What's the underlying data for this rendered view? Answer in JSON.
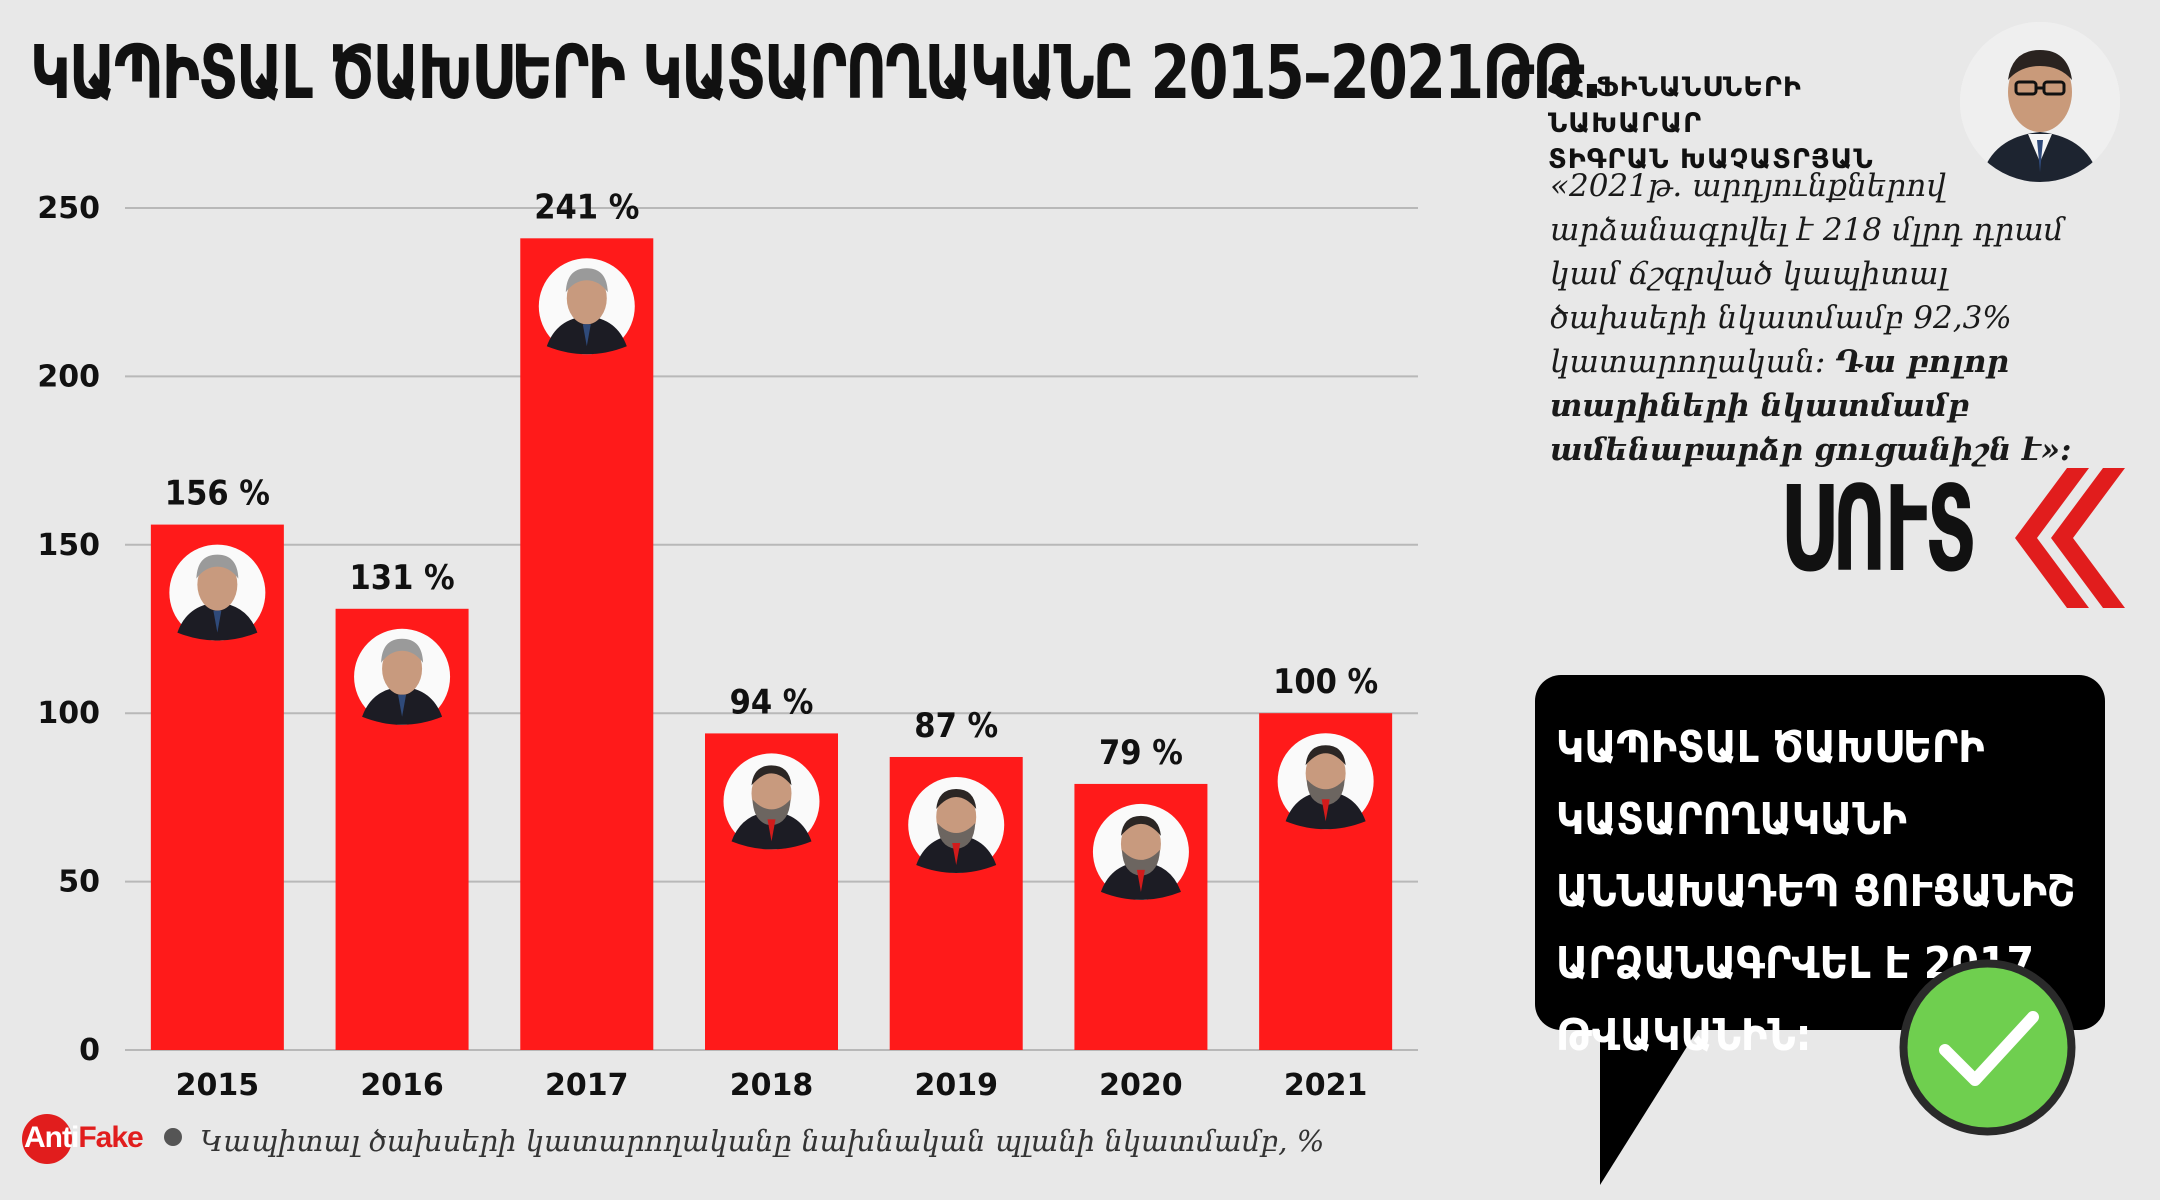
{
  "title": "ԿԱՊԻՏԱԼ ԾԱԽՍԵՐԻ ԿԱՏԱՐՈՂԱԿԱՆԸ 2015–2021ԹԹ․",
  "source_note": "Կապիտալ ծախսերի կատարողականը նախնական պլանի նկատմամբ, %",
  "logo": {
    "anti": "Anti",
    "fake": "Fake"
  },
  "minister": {
    "line1": "ՀՀ ՖԻՆԱՆՍՆԵՐԻ ՆԱԽԱՐԱՐ",
    "line2": "ՏԻԳՐԱՆ ԽԱՉԱՏՐՅԱՆ",
    "quote_plain": "«2021թ. արդյունքներով արձանագրվել է 218 մլրդ դրամ կամ ճշգրված կապիտալ ծախսերի նկատմամբ 92,3% կատարողական:",
    "quote_bold": "Դա բոլոր տարիների նկատմամբ ամենաբարձր ցուցանիշն է»:"
  },
  "verdict": "ՍՈՒՏ",
  "bubble_text": "ԿԱՊԻՏԱԼ ԾԱԽՍԵՐԻ ԿԱՏԱՐՈՂԱԿԱՆԻ ԱՆՆԱԽԱԴԵՊ ՑՈՒՑԱՆԻՇ ԱՐՁԱՆԱԳՐՎԵԼ Է 2017 ԹՎԱԿԱՆԻՆ:",
  "colors": {
    "bar": "#ff1a1a",
    "grid": "#b8b8b8",
    "background": "#e8e8e8",
    "check": "#6fcf4f",
    "accent": "#e11d1d"
  },
  "icons": {
    "portrait": "person-photo-icon",
    "check": "checkmark-icon",
    "chevrons": "double-chevron-left-icon"
  },
  "chart_data": {
    "type": "bar",
    "title": "",
    "xlabel": "",
    "ylabel": "",
    "categories": [
      "2015",
      "2016",
      "2017",
      "2018",
      "2019",
      "2020",
      "2021"
    ],
    "values": [
      156,
      131,
      241,
      94,
      87,
      79,
      100
    ],
    "value_labels": [
      "156 %",
      "131 %",
      "241 %",
      "94 %",
      "87 %",
      "79 %",
      "100 %"
    ],
    "ylim": [
      0,
      250
    ],
    "yticks": [
      0,
      50,
      100,
      150,
      200,
      250
    ],
    "grid": true,
    "legend": "none"
  }
}
